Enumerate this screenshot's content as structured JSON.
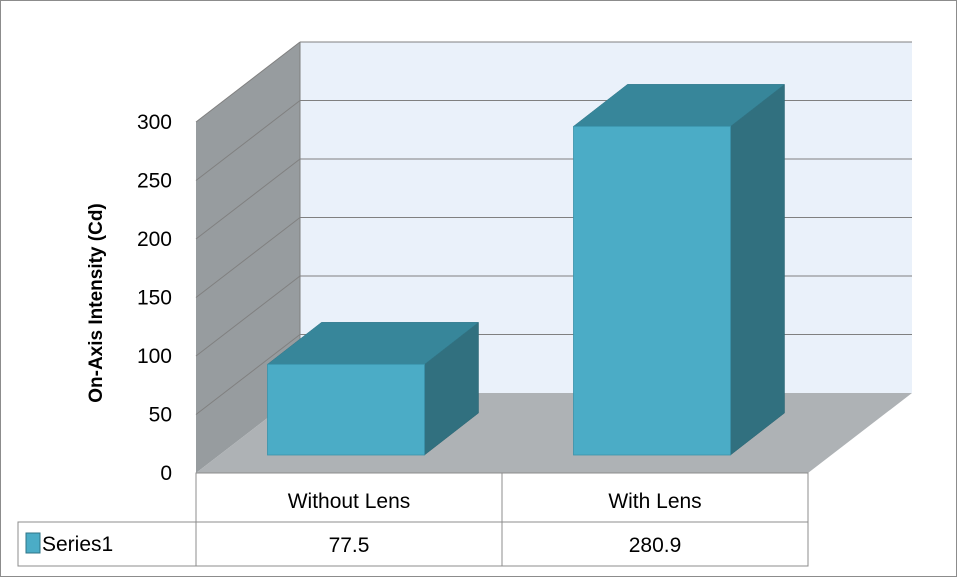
{
  "chart_data": {
    "type": "bar",
    "render_style": "3d-column-with-data-table",
    "categories": [
      "Without Lens",
      "With Lens"
    ],
    "series": [
      {
        "name": "Series1",
        "values": [
          77.5,
          280.9
        ],
        "color": "#4BACC6"
      }
    ],
    "ylabel": "On-Axis Intensity (Cd)",
    "xlabel": "",
    "ylim": [
      0,
      300
    ],
    "yticks": [
      "0",
      "50",
      "100",
      "150",
      "200",
      "250",
      "300"
    ],
    "grid": true,
    "legend": "in-data-table",
    "table_values": [
      "77.5",
      "280.9"
    ],
    "colors": {
      "back_wall": "#EAF1FA",
      "side_wall": "#979C9F",
      "floor": "#AEB2B5",
      "bar_front": "#4BACC6",
      "bar_top": "#37869A",
      "bar_side": "#31707F",
      "gridline": "#808080"
    }
  }
}
